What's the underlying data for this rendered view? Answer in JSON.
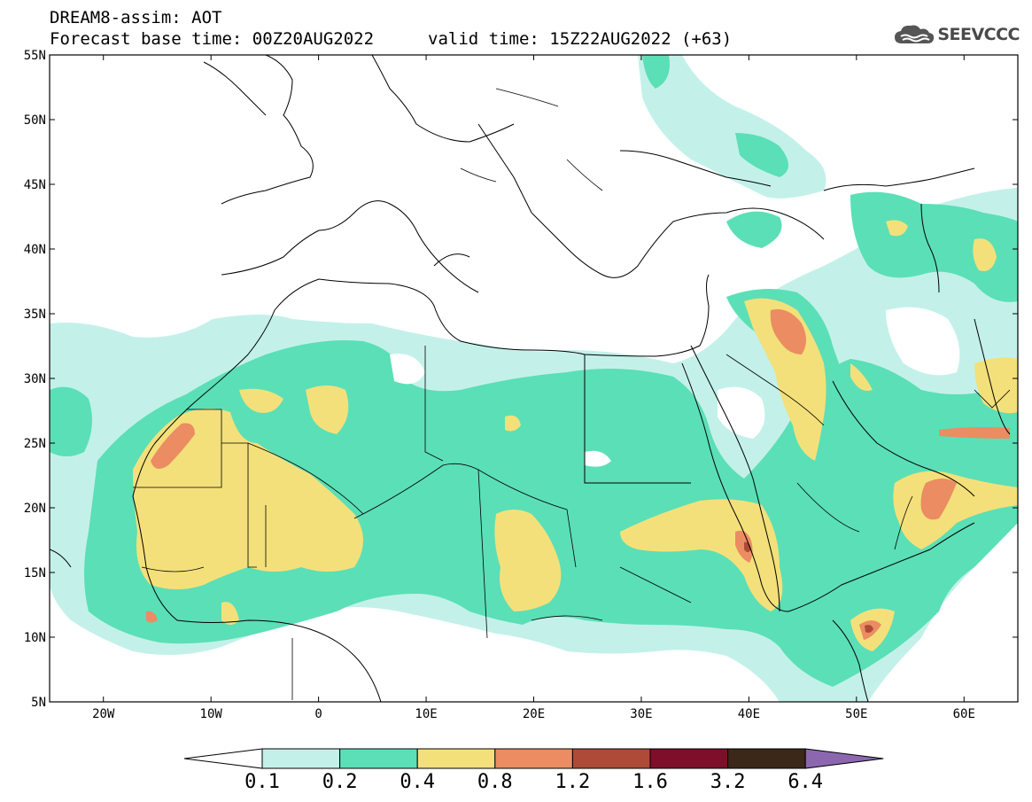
{
  "header": {
    "title": "DREAM8-assim: AOT",
    "base_time": "Forecast base time: 00Z20AUG2022",
    "valid_time": "valid time: 15Z22AUG2022 (+63)"
  },
  "brand": {
    "name": "SEEVCCC",
    "icon": "cloud-logo-icon"
  },
  "map": {
    "projection": "equirectangular",
    "lon_range": [
      -25,
      65
    ],
    "lat_range": [
      5,
      55
    ],
    "lon_ticks": [
      "20W",
      "10W",
      "0",
      "10E",
      "20E",
      "30E",
      "40E",
      "50E",
      "60E"
    ],
    "lat_ticks": [
      "55N",
      "50N",
      "45N",
      "40N",
      "35N",
      "30N",
      "25N",
      "20N",
      "15N",
      "10N",
      "5N"
    ]
  },
  "colorbar": {
    "labels": [
      "0.1",
      "0.2",
      "0.4",
      "0.8",
      "1.2",
      "1.6",
      "3.2",
      "6.4"
    ],
    "colors": [
      "#c3f1ea",
      "#5bdfb6",
      "#f4e07a",
      "#eb8c62",
      "#ad4b38",
      "#7d0f2a",
      "#3c2818",
      "#8c67b0"
    ],
    "below_color": "#ffffff"
  }
}
